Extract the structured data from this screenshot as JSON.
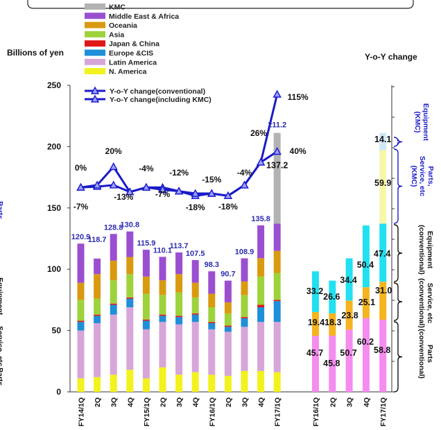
{
  "chart_data": {
    "type": "bar",
    "ylabel": "Billions of yen",
    "y2label": "Y-o-Y change",
    "ylim": [
      0,
      250
    ],
    "yticks": [
      "0",
      "50",
      "100",
      "150",
      "200",
      "250"
    ],
    "legend": [
      {
        "name": "KMC",
        "color": "#b3b3b3"
      },
      {
        "name": "Middle East & Africa",
        "color": "#9a4fd0"
      },
      {
        "name": "Oceania",
        "color": "#d99a10"
      },
      {
        "name": "Asia",
        "color": "#9ed23c"
      },
      {
        "name": "Japan & China",
        "color": "#e01818"
      },
      {
        "name": "Europe &CIS",
        "color": "#1e8fd8"
      },
      {
        "name": "Latin America",
        "color": "#d7a6d8"
      },
      {
        "name": "N. America",
        "color": "#f2f21e"
      }
    ],
    "left": {
      "categories": [
        "FY14/1Q",
        "2Q",
        "3Q",
        "4Q",
        "FY15/1Q",
        "2Q",
        "3Q",
        "4Q",
        "FY16/1Q",
        "2Q",
        "3Q",
        "4Q",
        "FY17/1Q"
      ],
      "series": [
        {
          "name": "N. America",
          "values": [
            11,
            12,
            14,
            18,
            11,
            20,
            14,
            16,
            14,
            13,
            17,
            17,
            16
          ]
        },
        {
          "name": "Latin America",
          "values": [
            39,
            44,
            49,
            51,
            40,
            37,
            41,
            41,
            37,
            36,
            36,
            40,
            41
          ]
        },
        {
          "name": "Europe &CIS",
          "values": [
            7,
            6,
            8,
            7,
            7,
            5,
            6,
            6,
            5,
            4,
            7,
            12,
            17
          ]
        },
        {
          "name": "Japan & China",
          "values": [
            1,
            1,
            1,
            1,
            1,
            1,
            1,
            1,
            1,
            1,
            1,
            2,
            1
          ]
        },
        {
          "name": "Asia",
          "values": [
            17,
            13,
            19,
            19,
            21,
            16,
            19,
            13,
            12,
            10,
            18,
            23,
            22
          ]
        },
        {
          "name": "Oceania",
          "values": [
            14,
            20,
            16,
            14,
            14,
            12,
            15,
            12,
            11,
            9,
            11,
            15,
            18
          ]
        },
        {
          "name": "Middle East & Africa",
          "values": [
            31.9,
            12.7,
            21.8,
            20.8,
            21.9,
            19.1,
            17.7,
            18.5,
            18.3,
            17.7,
            18.9,
            26.8,
            22.2
          ]
        },
        {
          "name": "KMC",
          "values": [
            0,
            0,
            0,
            0,
            0,
            0,
            0,
            0,
            0,
            0,
            0,
            0,
            74
          ]
        }
      ],
      "totals": [
        "120.9",
        "118.7",
        "128.8",
        "130.8",
        "115.9",
        "110.1",
        "113.7",
        "107.5",
        "98.3",
        "90.7",
        "108.9",
        "135.8",
        "211.2"
      ],
      "extra_label": "137.2",
      "yoy_lines": [
        {
          "name": "Y-o-Y change(conventional)",
          "color": "#1a1ac8",
          "values": [
            -7,
            -6,
            -4,
            -13,
            -7,
            -7,
            -12,
            -18,
            -15,
            -18,
            -4,
            26,
            40
          ]
        },
        {
          "name": "Y-o-Y change(including KMC)",
          "color": "#1a1ac8",
          "values": [
            -7,
            -4,
            20,
            -13,
            -7,
            -10,
            -12,
            -15,
            -15,
            -18,
            -4,
            26,
            115
          ]
        }
      ],
      "yoy_labels": [
        "0%",
        "20%",
        "-4%",
        "-12%",
        "-15%",
        "-4%",
        "26%",
        "115%",
        "-7%",
        "-13%",
        "-7%",
        "-18%",
        "-18%",
        "40%"
      ]
    },
    "right": {
      "categories": [
        "FY16/1Q",
        "2Q",
        "3Q",
        "4Q",
        "FY17/1Q"
      ],
      "series": [
        {
          "name": "Parts (conventional)",
          "color": "#f58cf0",
          "values": [
            45.7,
            45.8,
            50.7,
            60.2,
            58.8
          ]
        },
        {
          "name": "Service, etc (conventional)",
          "color": "#f5b41e",
          "values": [
            19.4,
            18.3,
            23.8,
            25.1,
            31.0
          ]
        },
        {
          "name": "Equipment (conventional)",
          "color": "#22e0f0",
          "values": [
            33.2,
            26.6,
            34.4,
            50.4,
            47.4
          ]
        },
        {
          "name": "Parts, Service, etc (KMC)",
          "color": "#f7f7a8",
          "values": [
            0,
            0,
            0,
            0,
            59.9
          ]
        },
        {
          "name": "Equipment (KMC)",
          "color": "#cfe8f4",
          "values": [
            0,
            0,
            0,
            0,
            14.1
          ]
        }
      ],
      "labels": {
        "parts": [
          "45.7",
          "45.8",
          "50.7",
          "60.2",
          "58.8"
        ],
        "service": [
          "19.4",
          "18.3",
          "23.8",
          "25.1",
          "31.0"
        ],
        "equipment": [
          "33.2",
          "26.6",
          "34.4",
          "50.4",
          "47.4"
        ],
        "kmc_parts": "59.9",
        "kmc_equipment": "14.1"
      }
    },
    "side_labels": {
      "equipment_kmc": "Equipment (KMC)",
      "parts_service_kmc": "Parts, Service, etc (KMC)",
      "equipment_conv": "Equipment (conventional)",
      "service_conv": "Service, etc (conventional)",
      "parts_conv": "Parts (conventional)",
      "left_edge_parts": "Parts,",
      "left_edge_equipment": "Equipment",
      "left_edge_service": "Service, etc",
      "left_edge_parts2": "Parts"
    }
  }
}
